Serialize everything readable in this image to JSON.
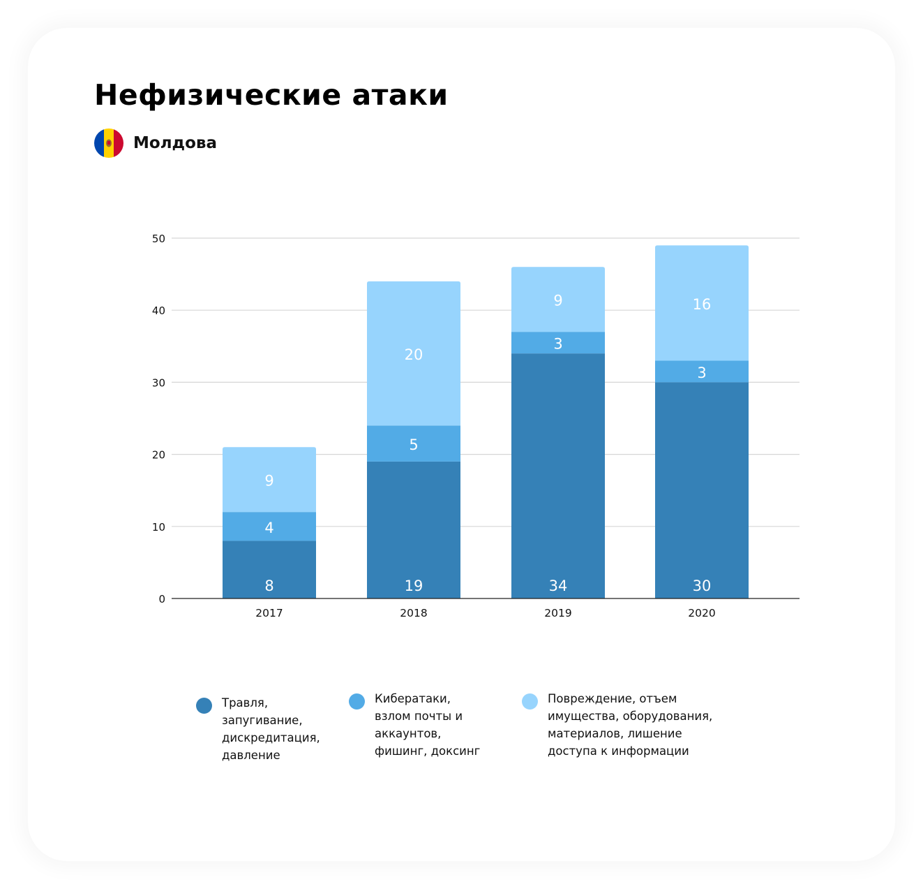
{
  "title": "Нефизические атаки",
  "country": {
    "name": "Молдова",
    "flag_icon": "moldova-flag-icon"
  },
  "colors": {
    "series_1": "#3581b7",
    "series_2": "#52abe6",
    "series_3": "#97d4fd",
    "grid": "#d6d6d6",
    "axis": "#222222"
  },
  "chart_data": {
    "type": "bar",
    "stacked": true,
    "categories": [
      "2017",
      "2018",
      "2019",
      "2020"
    ],
    "series": [
      {
        "name": "Травля, запугивание, дискредитация, давление",
        "values": [
          8,
          19,
          34,
          30
        ]
      },
      {
        "name": "Кибератаки, взлом почты и аккаунтов, фишинг, доксинг",
        "values": [
          4,
          5,
          3,
          3
        ]
      },
      {
        "name": "Повреждение, отъем имущества, оборудования, материалов, лишение доступа к информации",
        "values": [
          9,
          20,
          9,
          16
        ]
      }
    ],
    "ylim": [
      0,
      50
    ],
    "yticks": [
      "0",
      "10",
      "20",
      "30",
      "40",
      "50"
    ],
    "grid": true,
    "legend_position": "bottom"
  },
  "legend": [
    {
      "lines": [
        "Травля,",
        "запугивание,",
        "дискредитация,",
        "давление"
      ]
    },
    {
      "lines": [
        "Кибератаки,",
        "взлом почты и",
        "аккаунтов,",
        "фишинг, доксинг"
      ]
    },
    {
      "lines": [
        "Повреждение, отъем",
        "имущества, оборудования,",
        "материалов, лишение",
        "доступа к информации"
      ]
    }
  ]
}
